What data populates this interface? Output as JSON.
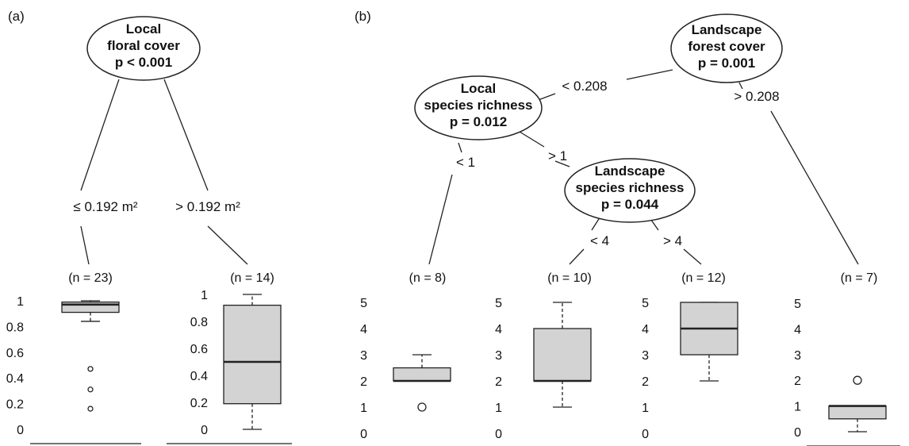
{
  "panels": {
    "a": "(a)",
    "b": "(b)"
  },
  "nodes": [
    {
      "id": "n1",
      "lines": [
        "Local",
        "floral cover",
        "p < 0.001"
      ]
    },
    {
      "id": "n2",
      "lines": [
        "Landscape",
        "forest cover",
        "p = 0.001"
      ]
    },
    {
      "id": "n3",
      "lines": [
        "Local",
        "species richness",
        "p = 0.012"
      ]
    },
    {
      "id": "n4",
      "lines": [
        "Landscape",
        "species richness",
        "p = 0.044"
      ]
    }
  ],
  "edge_labels": [
    {
      "id": "e1",
      "text": "≤ 0.192 m²"
    },
    {
      "id": "e2",
      "text": "> 0.192 m²"
    },
    {
      "id": "e3",
      "text": "< 0.208"
    },
    {
      "id": "e4",
      "text": "> 0.208"
    },
    {
      "id": "e5",
      "text": "< 1"
    },
    {
      "id": "e6",
      "text": "> 1"
    },
    {
      "id": "e7",
      "text": "< 4"
    },
    {
      "id": "e8",
      "text": "> 4"
    }
  ],
  "chart_data": [
    {
      "type": "boxplot",
      "title": "(n = 23)",
      "ylim": [
        0,
        1
      ],
      "yticks": [
        "0",
        "0.2",
        "0.4",
        "0.6",
        "0.8",
        "1"
      ],
      "box": {
        "q1": 0.91,
        "median": 0.97,
        "q3": 0.99,
        "whisker_low": 0.84,
        "whisker_high": 1.0
      },
      "outliers": [
        0.47,
        0.31,
        0.16
      ]
    },
    {
      "type": "boxplot",
      "title": "(n = 14)",
      "ylim": [
        0,
        1
      ],
      "yticks": [
        "0",
        "0.2",
        "0.4",
        "0.6",
        "0.8",
        "1"
      ],
      "box": {
        "q1": 0.19,
        "median": 0.5,
        "q3": 0.92,
        "whisker_low": 0.0,
        "whisker_high": 1.0
      },
      "outliers": []
    },
    {
      "type": "boxplot",
      "title": "(n = 8)",
      "ylim": [
        0,
        5
      ],
      "yticks": [
        "0",
        "1",
        "2",
        "3",
        "4",
        "5"
      ],
      "box": {
        "q1": 2.0,
        "median": 2.0,
        "q3": 2.5,
        "whisker_low": 2.0,
        "whisker_high": 3.0
      },
      "outliers": [
        1
      ]
    },
    {
      "type": "boxplot",
      "title": "(n = 10)",
      "ylim": [
        0,
        5
      ],
      "yticks": [
        "0",
        "1",
        "2",
        "3",
        "4",
        "5"
      ],
      "box": {
        "q1": 2.0,
        "median": 2.0,
        "q3": 4.0,
        "whisker_low": 1.0,
        "whisker_high": 5.0
      },
      "outliers": []
    },
    {
      "type": "boxplot",
      "title": "(n = 12)",
      "ylim": [
        0,
        5
      ],
      "yticks": [
        "0",
        "1",
        "2",
        "3",
        "4",
        "5"
      ],
      "box": {
        "q1": 3.0,
        "median": 4.0,
        "q3": 5.0,
        "whisker_low": 2.0,
        "whisker_high": 5.0
      },
      "outliers": []
    },
    {
      "type": "boxplot",
      "title": "(n = 7)",
      "ylim": [
        0,
        5
      ],
      "yticks": [
        "0",
        "1",
        "2",
        "3",
        "4",
        "5"
      ],
      "box": {
        "q1": 0.5,
        "median": 1.0,
        "q3": 1.0,
        "whisker_low": 0.0,
        "whisker_high": 1.0
      },
      "outliers": [
        2
      ]
    }
  ]
}
